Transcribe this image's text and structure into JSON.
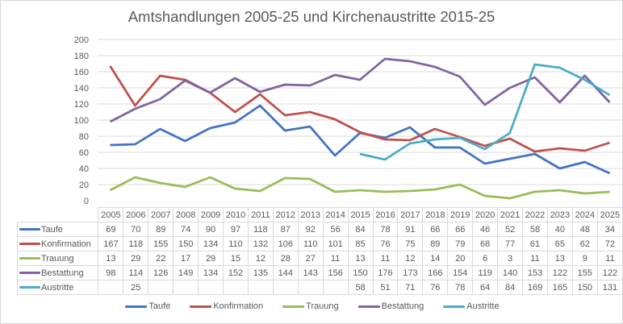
{
  "chart_data": {
    "type": "line",
    "title": "Amtshandlungen 2005-25 und Kirchenaustritte 2015-25",
    "xlabel": "",
    "ylabel": "",
    "ylim": [
      0,
      200
    ],
    "yticks": [
      0,
      20,
      40,
      60,
      80,
      100,
      120,
      140,
      160,
      180,
      200
    ],
    "grid": true,
    "legend_position": "bottom",
    "categories": [
      "2005",
      "2006",
      "2007",
      "2008",
      "2009",
      "2010",
      "2011",
      "2012",
      "2013",
      "2014",
      "2015",
      "2016",
      "2017",
      "2018",
      "2019",
      "2020",
      "2021",
      "2022",
      "2023",
      "2024",
      "2025"
    ],
    "series": [
      {
        "name": "Taufe",
        "color": "#4472c4",
        "values": [
          69,
          70,
          89,
          74,
          90,
          97,
          118,
          87,
          92,
          56,
          84,
          78,
          91,
          66,
          66,
          46,
          52,
          58,
          40,
          48,
          34
        ]
      },
      {
        "name": "Konfirmation",
        "color": "#c0504d",
        "values": [
          167,
          118,
          155,
          150,
          134,
          110,
          132,
          106,
          110,
          101,
          85,
          76,
          75,
          89,
          79,
          68,
          77,
          61,
          65,
          62,
          72
        ]
      },
      {
        "name": "Trauung",
        "color": "#9bbb59",
        "values": [
          13,
          29,
          22,
          17,
          29,
          15,
          12,
          28,
          27,
          11,
          13,
          11,
          12,
          14,
          20,
          6,
          3,
          11,
          13,
          9,
          11
        ]
      },
      {
        "name": "Bestattung",
        "color": "#8064a2",
        "values": [
          98,
          114,
          126,
          149,
          134,
          152,
          135,
          144,
          143,
          156,
          150,
          176,
          173,
          166,
          154,
          119,
          140,
          153,
          122,
          155,
          122
        ]
      },
      {
        "name": "Austritte",
        "color": "#4bacc6",
        "values": [
          null,
          25,
          null,
          null,
          null,
          null,
          null,
          null,
          null,
          null,
          58,
          51,
          71,
          76,
          78,
          64,
          84,
          169,
          165,
          150,
          131
        ]
      }
    ],
    "data_table": true
  }
}
